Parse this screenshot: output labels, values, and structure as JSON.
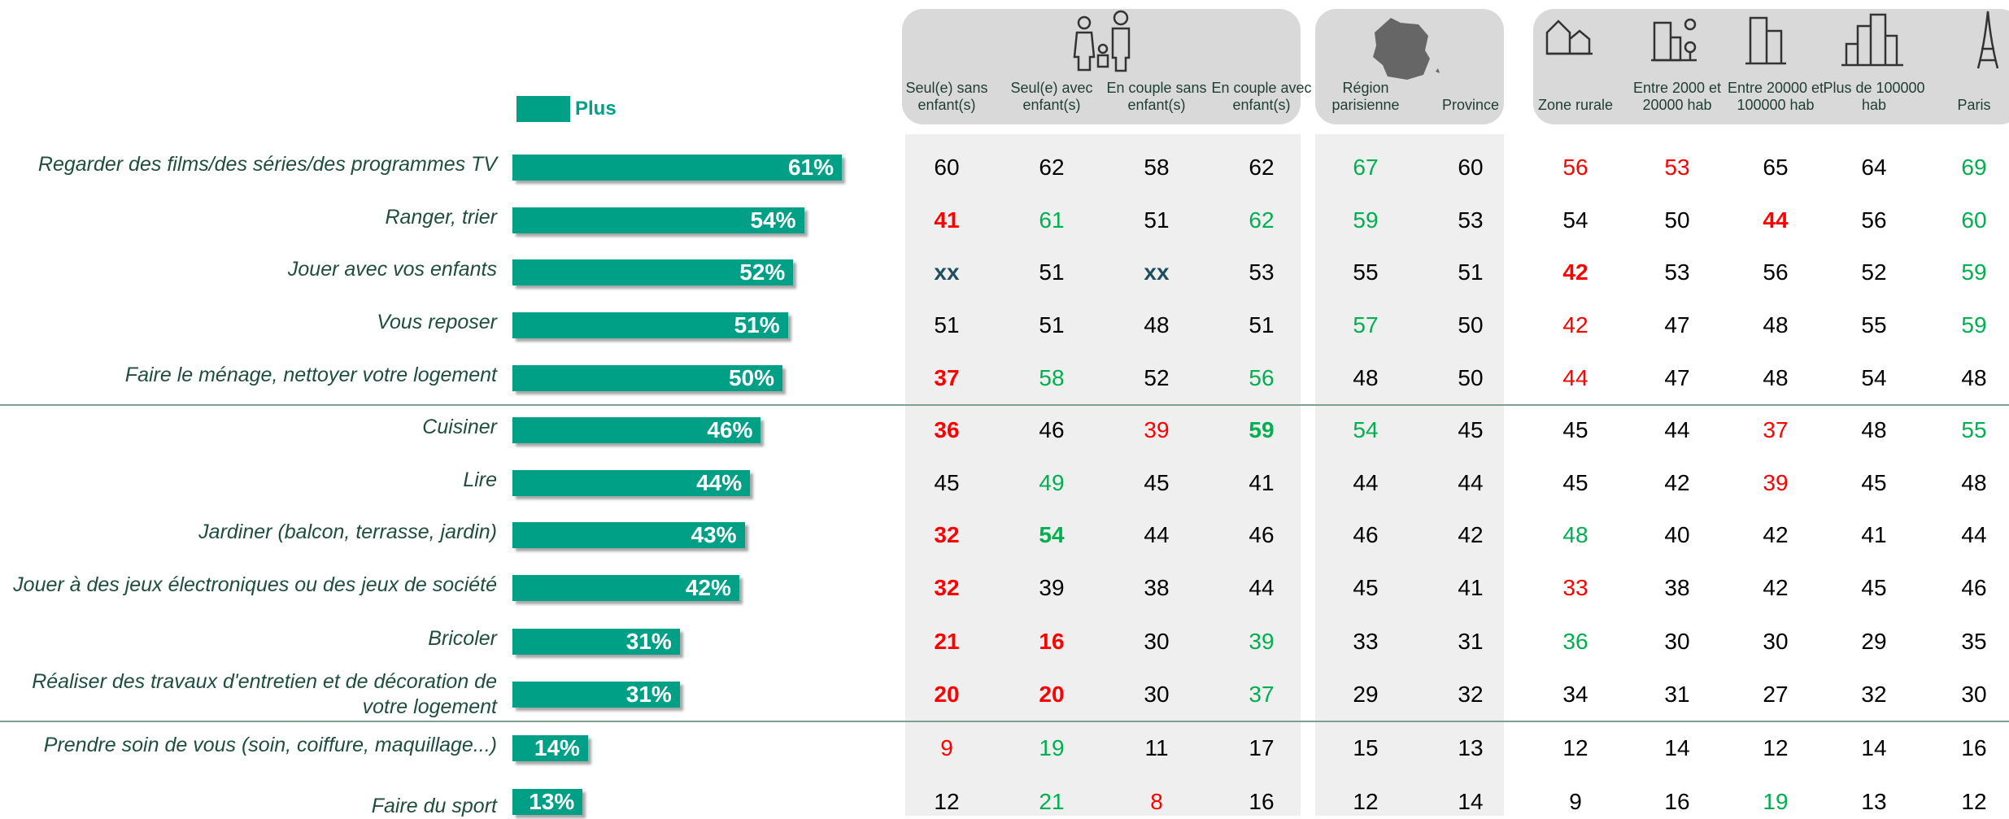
{
  "chart_data": {
    "type": "bar",
    "orientation": "horizontal",
    "legend": "Plus",
    "color": "#00a087",
    "categories": [
      "Regarder des films/des séries/des programmes TV",
      "Ranger, trier",
      "Jouer avec vos enfants",
      "Vous reposer",
      "Faire le ménage, nettoyer votre logement",
      "Cuisiner",
      "Lire",
      "Jardiner (balcon, terrasse, jardin)",
      "Jouer à des jeux électroniques ou des jeux de société",
      "Bricoler",
      "Réaliser des travaux d'entretien et de décoration de votre logement",
      "Prendre soin de vous (soin, coiffure, maquillage...)",
      "Faire du sport"
    ],
    "values": [
      61,
      54,
      52,
      51,
      50,
      46,
      44,
      43,
      42,
      31,
      31,
      14,
      13
    ],
    "value_labels": [
      "61%",
      "54%",
      "52%",
      "51%",
      "50%",
      "46%",
      "44%",
      "43%",
      "42%",
      "31%",
      "31%",
      "14%",
      "13%"
    ]
  },
  "table": {
    "columns": [
      "Seul(e) sans enfant(s)",
      "Seul(e) avec enfant(s)",
      "En couple sans enfant(s)",
      "En couple avec enfant(s)",
      "Région parisienne",
      "Province",
      "Zone rurale",
      "Entre 2000 et 20000 hab",
      "Entre 20000 et 100000 hab",
      "Plus de 100000 hab",
      "Paris"
    ],
    "rows": [
      [
        60,
        62,
        58,
        62,
        67,
        60,
        56,
        53,
        65,
        64,
        69
      ],
      [
        41,
        61,
        51,
        62,
        59,
        53,
        54,
        50,
        44,
        56,
        60
      ],
      [
        "xx",
        51,
        "xx",
        53,
        55,
        51,
        42,
        53,
        56,
        52,
        59
      ],
      [
        51,
        51,
        48,
        51,
        57,
        50,
        42,
        47,
        48,
        55,
        59
      ],
      [
        37,
        58,
        52,
        56,
        48,
        50,
        44,
        47,
        48,
        54,
        48
      ],
      [
        36,
        46,
        39,
        59,
        54,
        45,
        45,
        44,
        37,
        48,
        55
      ],
      [
        45,
        49,
        45,
        41,
        44,
        44,
        45,
        42,
        39,
        45,
        48
      ],
      [
        32,
        54,
        44,
        46,
        46,
        42,
        48,
        40,
        42,
        41,
        44
      ],
      [
        32,
        39,
        38,
        44,
        45,
        41,
        33,
        38,
        42,
        45,
        46
      ],
      [
        21,
        16,
        30,
        39,
        33,
        31,
        36,
        30,
        30,
        29,
        35
      ],
      [
        20,
        20,
        30,
        37,
        29,
        32,
        34,
        31,
        27,
        32,
        30
      ],
      [
        9,
        19,
        11,
        17,
        15,
        13,
        12,
        14,
        12,
        14,
        16
      ],
      [
        12,
        21,
        8,
        16,
        12,
        14,
        9,
        16,
        19,
        13,
        12
      ]
    ],
    "styles": [
      [
        "n",
        "n",
        "n",
        "n",
        "g",
        "n",
        "r",
        "r",
        "n",
        "n",
        "g"
      ],
      [
        "rb",
        "g",
        "n",
        "g",
        "g",
        "n",
        "n",
        "n",
        "rb",
        "n",
        "g"
      ],
      [
        "x",
        "n",
        "x",
        "n",
        "n",
        "n",
        "rb",
        "n",
        "n",
        "n",
        "g"
      ],
      [
        "n",
        "n",
        "n",
        "n",
        "g",
        "n",
        "r",
        "n",
        "n",
        "n",
        "g"
      ],
      [
        "rb",
        "g",
        "n",
        "g",
        "n",
        "n",
        "r",
        "n",
        "n",
        "n",
        "n"
      ],
      [
        "rb",
        "n",
        "r",
        "gb",
        "g",
        "n",
        "n",
        "n",
        "r",
        "n",
        "g"
      ],
      [
        "n",
        "g",
        "n",
        "n",
        "n",
        "n",
        "n",
        "n",
        "r",
        "n",
        "n"
      ],
      [
        "rb",
        "gb",
        "n",
        "n",
        "n",
        "n",
        "g",
        "n",
        "n",
        "n",
        "n"
      ],
      [
        "rb",
        "n",
        "n",
        "n",
        "n",
        "n",
        "r",
        "n",
        "n",
        "n",
        "n"
      ],
      [
        "rb",
        "rb",
        "n",
        "g",
        "n",
        "n",
        "g",
        "n",
        "n",
        "n",
        "n"
      ],
      [
        "rb",
        "rb",
        "n",
        "g",
        "n",
        "n",
        "n",
        "n",
        "n",
        "n",
        "n"
      ],
      [
        "r",
        "g",
        "n",
        "n",
        "n",
        "n",
        "n",
        "n",
        "n",
        "n",
        "n"
      ],
      [
        "n",
        "g",
        "r",
        "n",
        "n",
        "n",
        "n",
        "n",
        "g",
        "n",
        "n"
      ]
    ]
  }
}
